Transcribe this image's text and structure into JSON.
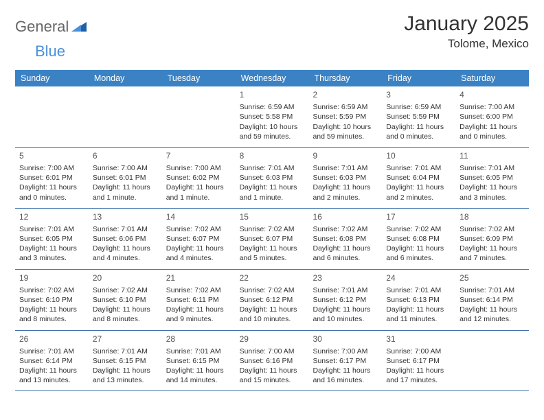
{
  "logo": {
    "text1": "General",
    "text2": "Blue"
  },
  "title": "January 2025",
  "location": "Tolome, Mexico",
  "header_bg": "#3b82c4",
  "border_color": "#3b6fa8",
  "dayNames": [
    "Sunday",
    "Monday",
    "Tuesday",
    "Wednesday",
    "Thursday",
    "Friday",
    "Saturday"
  ],
  "weeks": [
    [
      null,
      null,
      null,
      {
        "n": "1",
        "sr": "Sunrise: 6:59 AM",
        "ss": "Sunset: 5:58 PM",
        "d1": "Daylight: 10 hours",
        "d2": "and 59 minutes."
      },
      {
        "n": "2",
        "sr": "Sunrise: 6:59 AM",
        "ss": "Sunset: 5:59 PM",
        "d1": "Daylight: 10 hours",
        "d2": "and 59 minutes."
      },
      {
        "n": "3",
        "sr": "Sunrise: 6:59 AM",
        "ss": "Sunset: 5:59 PM",
        "d1": "Daylight: 11 hours",
        "d2": "and 0 minutes."
      },
      {
        "n": "4",
        "sr": "Sunrise: 7:00 AM",
        "ss": "Sunset: 6:00 PM",
        "d1": "Daylight: 11 hours",
        "d2": "and 0 minutes."
      }
    ],
    [
      {
        "n": "5",
        "sr": "Sunrise: 7:00 AM",
        "ss": "Sunset: 6:01 PM",
        "d1": "Daylight: 11 hours",
        "d2": "and 0 minutes."
      },
      {
        "n": "6",
        "sr": "Sunrise: 7:00 AM",
        "ss": "Sunset: 6:01 PM",
        "d1": "Daylight: 11 hours",
        "d2": "and 1 minute."
      },
      {
        "n": "7",
        "sr": "Sunrise: 7:00 AM",
        "ss": "Sunset: 6:02 PM",
        "d1": "Daylight: 11 hours",
        "d2": "and 1 minute."
      },
      {
        "n": "8",
        "sr": "Sunrise: 7:01 AM",
        "ss": "Sunset: 6:03 PM",
        "d1": "Daylight: 11 hours",
        "d2": "and 1 minute."
      },
      {
        "n": "9",
        "sr": "Sunrise: 7:01 AM",
        "ss": "Sunset: 6:03 PM",
        "d1": "Daylight: 11 hours",
        "d2": "and 2 minutes."
      },
      {
        "n": "10",
        "sr": "Sunrise: 7:01 AM",
        "ss": "Sunset: 6:04 PM",
        "d1": "Daylight: 11 hours",
        "d2": "and 2 minutes."
      },
      {
        "n": "11",
        "sr": "Sunrise: 7:01 AM",
        "ss": "Sunset: 6:05 PM",
        "d1": "Daylight: 11 hours",
        "d2": "and 3 minutes."
      }
    ],
    [
      {
        "n": "12",
        "sr": "Sunrise: 7:01 AM",
        "ss": "Sunset: 6:05 PM",
        "d1": "Daylight: 11 hours",
        "d2": "and 3 minutes."
      },
      {
        "n": "13",
        "sr": "Sunrise: 7:01 AM",
        "ss": "Sunset: 6:06 PM",
        "d1": "Daylight: 11 hours",
        "d2": "and 4 minutes."
      },
      {
        "n": "14",
        "sr": "Sunrise: 7:02 AM",
        "ss": "Sunset: 6:07 PM",
        "d1": "Daylight: 11 hours",
        "d2": "and 4 minutes."
      },
      {
        "n": "15",
        "sr": "Sunrise: 7:02 AM",
        "ss": "Sunset: 6:07 PM",
        "d1": "Daylight: 11 hours",
        "d2": "and 5 minutes."
      },
      {
        "n": "16",
        "sr": "Sunrise: 7:02 AM",
        "ss": "Sunset: 6:08 PM",
        "d1": "Daylight: 11 hours",
        "d2": "and 6 minutes."
      },
      {
        "n": "17",
        "sr": "Sunrise: 7:02 AM",
        "ss": "Sunset: 6:08 PM",
        "d1": "Daylight: 11 hours",
        "d2": "and 6 minutes."
      },
      {
        "n": "18",
        "sr": "Sunrise: 7:02 AM",
        "ss": "Sunset: 6:09 PM",
        "d1": "Daylight: 11 hours",
        "d2": "and 7 minutes."
      }
    ],
    [
      {
        "n": "19",
        "sr": "Sunrise: 7:02 AM",
        "ss": "Sunset: 6:10 PM",
        "d1": "Daylight: 11 hours",
        "d2": "and 8 minutes."
      },
      {
        "n": "20",
        "sr": "Sunrise: 7:02 AM",
        "ss": "Sunset: 6:10 PM",
        "d1": "Daylight: 11 hours",
        "d2": "and 8 minutes."
      },
      {
        "n": "21",
        "sr": "Sunrise: 7:02 AM",
        "ss": "Sunset: 6:11 PM",
        "d1": "Daylight: 11 hours",
        "d2": "and 9 minutes."
      },
      {
        "n": "22",
        "sr": "Sunrise: 7:02 AM",
        "ss": "Sunset: 6:12 PM",
        "d1": "Daylight: 11 hours",
        "d2": "and 10 minutes."
      },
      {
        "n": "23",
        "sr": "Sunrise: 7:01 AM",
        "ss": "Sunset: 6:12 PM",
        "d1": "Daylight: 11 hours",
        "d2": "and 10 minutes."
      },
      {
        "n": "24",
        "sr": "Sunrise: 7:01 AM",
        "ss": "Sunset: 6:13 PM",
        "d1": "Daylight: 11 hours",
        "d2": "and 11 minutes."
      },
      {
        "n": "25",
        "sr": "Sunrise: 7:01 AM",
        "ss": "Sunset: 6:14 PM",
        "d1": "Daylight: 11 hours",
        "d2": "and 12 minutes."
      }
    ],
    [
      {
        "n": "26",
        "sr": "Sunrise: 7:01 AM",
        "ss": "Sunset: 6:14 PM",
        "d1": "Daylight: 11 hours",
        "d2": "and 13 minutes."
      },
      {
        "n": "27",
        "sr": "Sunrise: 7:01 AM",
        "ss": "Sunset: 6:15 PM",
        "d1": "Daylight: 11 hours",
        "d2": "and 13 minutes."
      },
      {
        "n": "28",
        "sr": "Sunrise: 7:01 AM",
        "ss": "Sunset: 6:15 PM",
        "d1": "Daylight: 11 hours",
        "d2": "and 14 minutes."
      },
      {
        "n": "29",
        "sr": "Sunrise: 7:00 AM",
        "ss": "Sunset: 6:16 PM",
        "d1": "Daylight: 11 hours",
        "d2": "and 15 minutes."
      },
      {
        "n": "30",
        "sr": "Sunrise: 7:00 AM",
        "ss": "Sunset: 6:17 PM",
        "d1": "Daylight: 11 hours",
        "d2": "and 16 minutes."
      },
      {
        "n": "31",
        "sr": "Sunrise: 7:00 AM",
        "ss": "Sunset: 6:17 PM",
        "d1": "Daylight: 11 hours",
        "d2": "and 17 minutes."
      },
      null
    ]
  ]
}
